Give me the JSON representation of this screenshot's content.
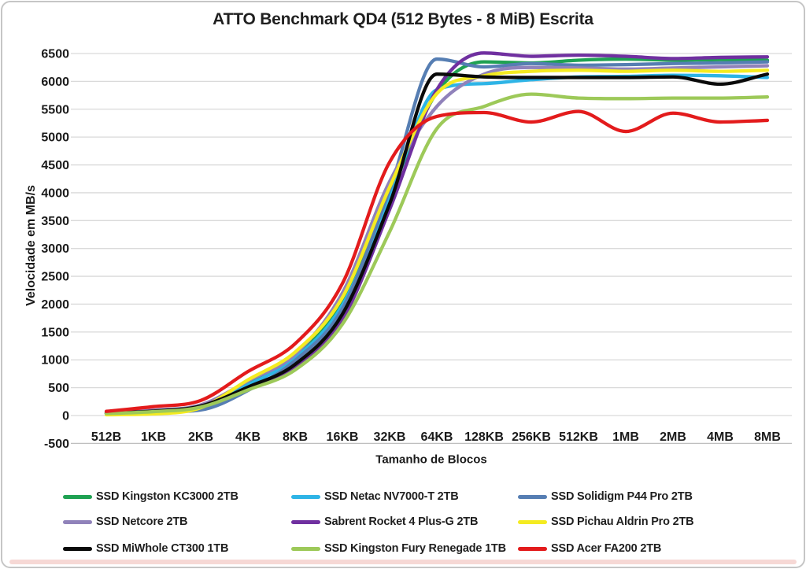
{
  "chart_data": {
    "type": "line",
    "title": "ATTO Benchmark QD4 (512 Bytes - 8 MiB) Escrita",
    "xlabel": "Tamanho de Blocos",
    "ylabel": "Velocidade em MB/s",
    "ylim": [
      -500,
      6500
    ],
    "ytick_step": 500,
    "grid": "horizontal-only",
    "gridline_color": "#d9d9d9",
    "axis_line_color": "#bfbfbf",
    "legend_position": "bottom",
    "smooth": true,
    "categories": [
      "512B",
      "1KB",
      "2KB",
      "4KB",
      "8KB",
      "16KB",
      "32KB",
      "64KB",
      "128KB",
      "256KB",
      "512KB",
      "1MB",
      "2MB",
      "4MB",
      "8MB"
    ],
    "series": [
      {
        "name": "SSD Kingston KC3000 2TB",
        "color": "#1FA152",
        "values": [
          45,
          90,
          185,
          580,
          1060,
          2020,
          3950,
          5800,
          6350,
          6330,
          6380,
          6400,
          6380,
          6390,
          6380
        ]
      },
      {
        "name": "SSD Netac NV7000-T 2TB",
        "color": "#2EB4E6",
        "values": [
          40,
          80,
          170,
          550,
          1030,
          1980,
          3900,
          5850,
          5960,
          6030,
          6080,
          6090,
          6110,
          6100,
          6070
        ]
      },
      {
        "name": "SSD Solidigm P44 Pro 2TB",
        "color": "#567EB3",
        "values": [
          40,
          60,
          100,
          450,
          990,
          1920,
          4050,
          6400,
          6260,
          6320,
          6290,
          6300,
          6320,
          6330,
          6350
        ]
      },
      {
        "name": "SSD Netcore 2TB",
        "color": "#9082BA",
        "values": [
          45,
          95,
          190,
          620,
          1100,
          2200,
          4200,
          5550,
          6130,
          6250,
          6240,
          6220,
          6240,
          6260,
          6280
        ]
      },
      {
        "name": "Sabrent Rocket 4 Plus-G 2TB",
        "color": "#7030A0",
        "values": [
          40,
          75,
          160,
          480,
          870,
          1720,
          3700,
          5850,
          6510,
          6450,
          6470,
          6450,
          6410,
          6430,
          6440
        ]
      },
      {
        "name": "SSD Pichau Aldrin Pro 2TB",
        "color": "#F4EB21",
        "values": [
          15,
          30,
          140,
          640,
          1140,
          2120,
          4100,
          5780,
          6100,
          6180,
          6200,
          6180,
          6200,
          6180,
          6200
        ]
      },
      {
        "name": "SSD MiWhole CT300 1TB",
        "color": "#0A0A0A",
        "values": [
          40,
          80,
          170,
          510,
          920,
          1820,
          3800,
          6130,
          6080,
          6070,
          6070,
          6070,
          6080,
          5950,
          6130
        ]
      },
      {
        "name": "SSD Kingston Fury Renegade 1TB",
        "color": "#9DC959",
        "values": [
          35,
          70,
          150,
          460,
          820,
          1640,
          3300,
          5150,
          5550,
          5770,
          5700,
          5690,
          5700,
          5700,
          5720
        ]
      },
      {
        "name": "SSD Acer FA200 2TB",
        "color": "#E31B1C",
        "values": [
          75,
          160,
          270,
          790,
          1290,
          2370,
          4550,
          5370,
          5440,
          5270,
          5460,
          5100,
          5430,
          5270,
          5300
        ]
      }
    ]
  }
}
